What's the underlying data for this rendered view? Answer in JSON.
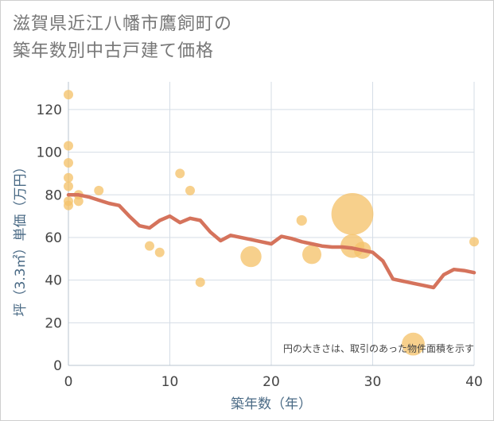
{
  "title_lines": [
    "滋賀県近江八幡市鷹飼町の",
    "築年数別中古戸建て価格"
  ],
  "colors": {
    "grid": "#d5dde6",
    "axis_text": "#444444",
    "label_text": "#4a6a85",
    "bubble": "#f5c36b",
    "line": "#d5735c"
  },
  "chart_data": {
    "type": "scatter",
    "title": "滋賀県近江八幡市鷹飼町の築年数別中古戸建て価格",
    "xlabel": "築年数（年）",
    "ylabel": "坪（3.3㎡）単価（万円）",
    "xlim": [
      0,
      40
    ],
    "ylim": [
      0,
      133
    ],
    "x_ticks": [
      "0",
      "10",
      "20",
      "30",
      "40"
    ],
    "y_ticks": [
      "0",
      "20",
      "40",
      "60",
      "80",
      "100",
      "120"
    ],
    "grid": true,
    "annotation": "円の大きさは、取引のあった物件面積を示す",
    "bubbles": [
      {
        "x": 0,
        "y": 127,
        "size": 1
      },
      {
        "x": 0,
        "y": 103,
        "size": 1
      },
      {
        "x": 0,
        "y": 95,
        "size": 1
      },
      {
        "x": 0,
        "y": 88,
        "size": 1
      },
      {
        "x": 0,
        "y": 84,
        "size": 1
      },
      {
        "x": 0,
        "y": 77,
        "size": 1
      },
      {
        "x": 0,
        "y": 75,
        "size": 1
      },
      {
        "x": 1,
        "y": 80,
        "size": 1
      },
      {
        "x": 1,
        "y": 77,
        "size": 1
      },
      {
        "x": 3,
        "y": 82,
        "size": 1
      },
      {
        "x": 8,
        "y": 56,
        "size": 1
      },
      {
        "x": 9,
        "y": 53,
        "size": 1
      },
      {
        "x": 11,
        "y": 90,
        "size": 1
      },
      {
        "x": 12,
        "y": 82,
        "size": 1
      },
      {
        "x": 13,
        "y": 39,
        "size": 1
      },
      {
        "x": 18,
        "y": 51,
        "size": 2.2
      },
      {
        "x": 23,
        "y": 68,
        "size": 1.1
      },
      {
        "x": 24,
        "y": 52,
        "size": 2
      },
      {
        "x": 28,
        "y": 71,
        "size": 4.4
      },
      {
        "x": 28,
        "y": 56,
        "size": 2.5
      },
      {
        "x": 29,
        "y": 54,
        "size": 1.8
      },
      {
        "x": 34,
        "y": 10,
        "size": 2.4
      },
      {
        "x": 40,
        "y": 58,
        "size": 1
      }
    ],
    "trend_line": [
      {
        "x": 0,
        "y": 80
      },
      {
        "x": 1,
        "y": 80
      },
      {
        "x": 2,
        "y": 79
      },
      {
        "x": 3,
        "y": 77.5
      },
      {
        "x": 4,
        "y": 76
      },
      {
        "x": 5,
        "y": 75
      },
      {
        "x": 6,
        "y": 70
      },
      {
        "x": 7,
        "y": 65.5
      },
      {
        "x": 8,
        "y": 64.5
      },
      {
        "x": 9,
        "y": 68
      },
      {
        "x": 10,
        "y": 70
      },
      {
        "x": 11,
        "y": 67
      },
      {
        "x": 12,
        "y": 69
      },
      {
        "x": 13,
        "y": 68
      },
      {
        "x": 14,
        "y": 62.5
      },
      {
        "x": 15,
        "y": 58.5
      },
      {
        "x": 16,
        "y": 61
      },
      {
        "x": 17,
        "y": 60
      },
      {
        "x": 18,
        "y": 59
      },
      {
        "x": 19,
        "y": 58
      },
      {
        "x": 20,
        "y": 57
      },
      {
        "x": 21,
        "y": 60.5
      },
      {
        "x": 22,
        "y": 59.5
      },
      {
        "x": 23,
        "y": 58
      },
      {
        "x": 24,
        "y": 57
      },
      {
        "x": 25,
        "y": 56
      },
      {
        "x": 26,
        "y": 55.5
      },
      {
        "x": 27,
        "y": 55.5
      },
      {
        "x": 28,
        "y": 55
      },
      {
        "x": 29,
        "y": 54
      },
      {
        "x": 30,
        "y": 53
      },
      {
        "x": 31,
        "y": 49
      },
      {
        "x": 32,
        "y": 40.5
      },
      {
        "x": 33,
        "y": 39.5
      },
      {
        "x": 34,
        "y": 38.5
      },
      {
        "x": 35,
        "y": 37.5
      },
      {
        "x": 36,
        "y": 36.5
      },
      {
        "x": 37,
        "y": 42.5
      },
      {
        "x": 38,
        "y": 45
      },
      {
        "x": 39,
        "y": 44.5
      },
      {
        "x": 40,
        "y": 43.5
      }
    ]
  }
}
